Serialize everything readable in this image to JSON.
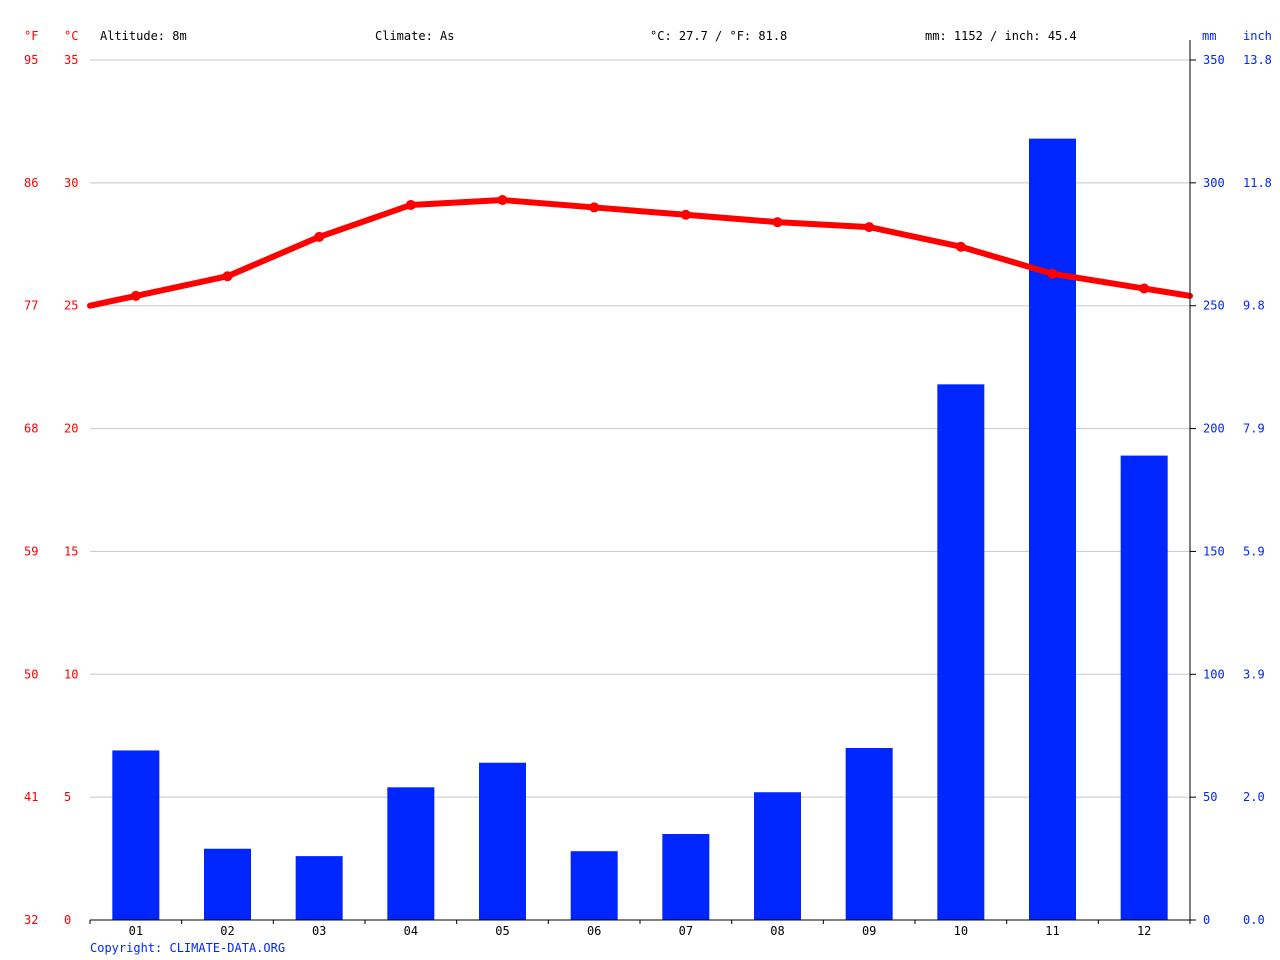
{
  "header": {
    "unit_f": "°F",
    "unit_c": "°C",
    "unit_mm": "mm",
    "unit_inch": "inch",
    "altitude": "Altitude: 8m",
    "climate": "Climate: As",
    "temp_avg": "°C: 27.7 / °F: 81.8",
    "precip_total": "mm: 1152 / inch: 45.4"
  },
  "copyright": "Copyright: CLIMATE-DATA.ORG",
  "colors": {
    "temperature": "#ff0000",
    "precipitation": "#0026ff",
    "grid": "#c8c8c8",
    "axis": "#000000"
  },
  "chart_data": {
    "type": "bar+line",
    "categories": [
      "01",
      "02",
      "03",
      "04",
      "05",
      "06",
      "07",
      "08",
      "09",
      "10",
      "11",
      "12"
    ],
    "series": [
      {
        "type": "bar",
        "axis": "right",
        "unit": "mm",
        "values": [
          69,
          29,
          26,
          54,
          64,
          28,
          35,
          52,
          70,
          218,
          318,
          189
        ]
      },
      {
        "type": "line",
        "axis": "left",
        "unit": "°C",
        "values": [
          25.4,
          26.2,
          27.8,
          29.1,
          29.3,
          29.0,
          28.7,
          28.4,
          28.2,
          27.4,
          26.3,
          25.7
        ]
      }
    ],
    "y_left": {
      "label": "°C",
      "ylim": [
        0,
        35
      ],
      "ticks": [
        0,
        5,
        10,
        15,
        20,
        25,
        30,
        35
      ]
    },
    "y_left_alt": {
      "label": "°F",
      "ticks": [
        "32",
        "41",
        "50",
        "59",
        "68",
        "77",
        "86",
        "95"
      ]
    },
    "y_right": {
      "label": "mm",
      "ylim": [
        0,
        350
      ],
      "ticks": [
        0,
        50,
        100,
        150,
        200,
        250,
        300,
        350
      ]
    },
    "y_right_alt": {
      "label": "inch",
      "ticks": [
        "0.0",
        "2.0",
        "3.9",
        "5.9",
        "7.9",
        "9.8",
        "11.8",
        "13.8"
      ]
    },
    "grid": true
  }
}
